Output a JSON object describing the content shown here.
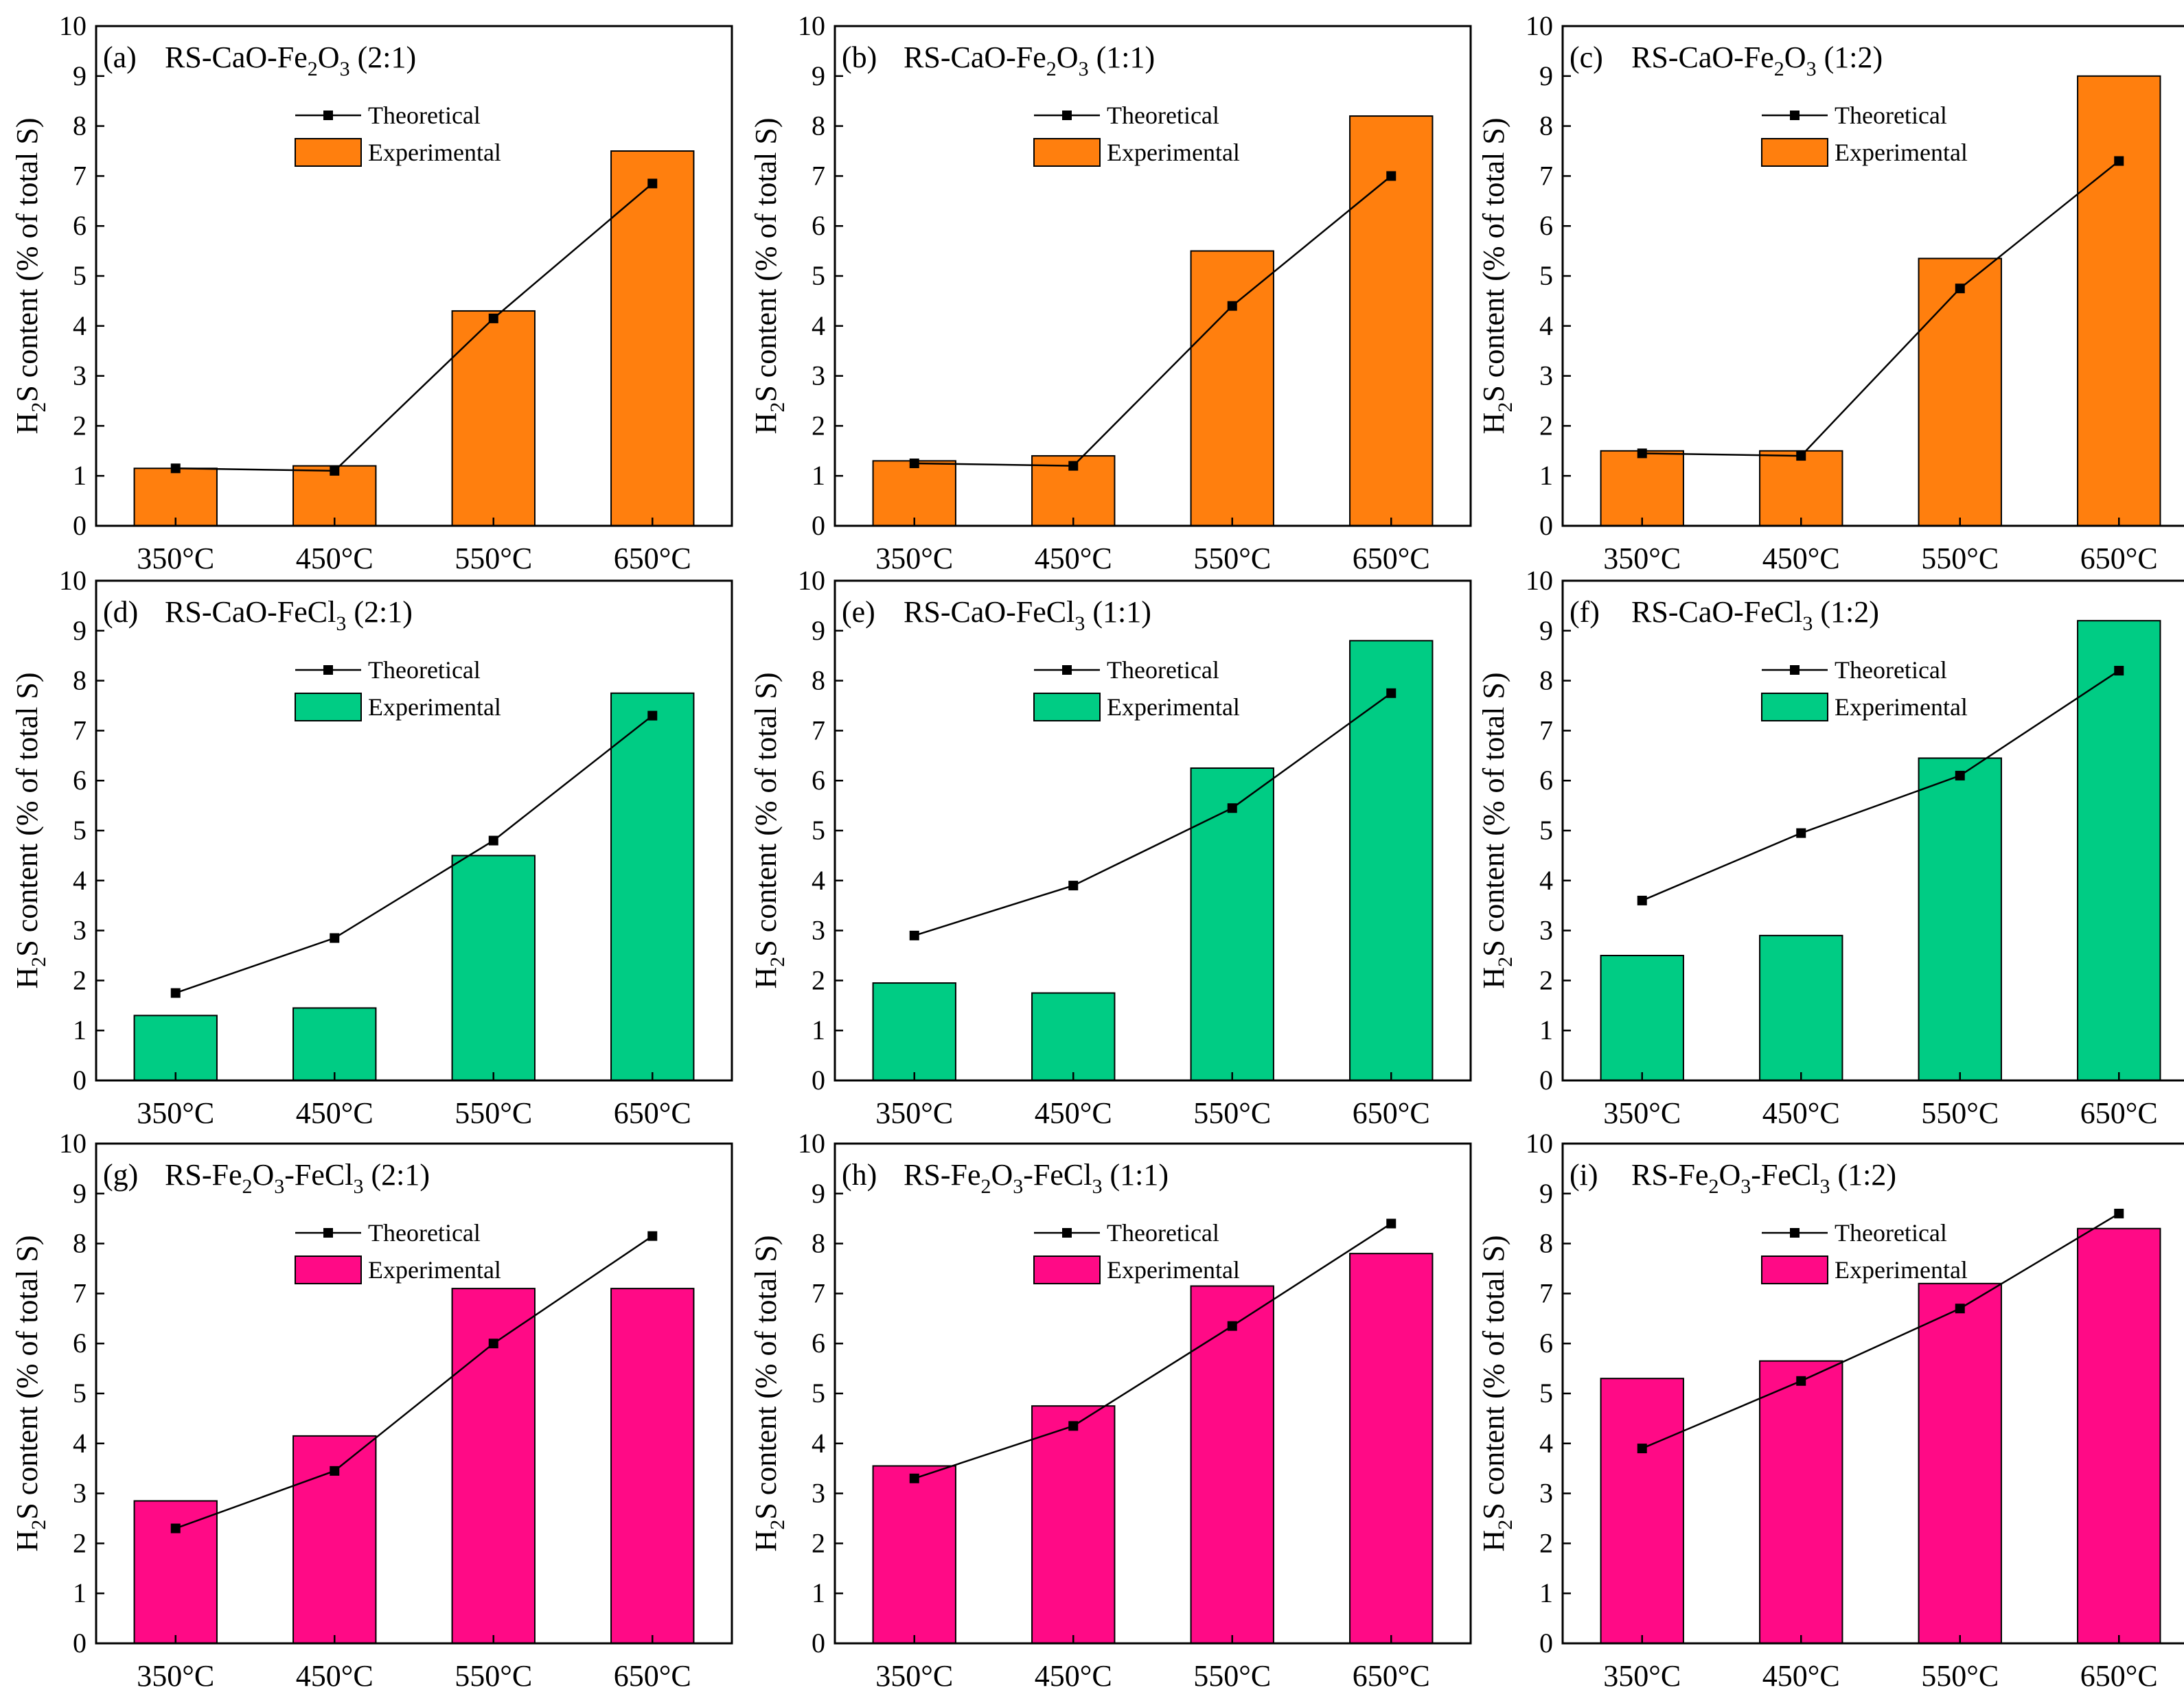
{
  "figure": {
    "categories": [
      "350°C",
      "450°C",
      "550°C",
      "650°C"
    ],
    "ylabel": {
      "main": "H",
      "sub": "2",
      "rest": "S content (% of total S)"
    },
    "legend": {
      "theoretical": "Theoretical",
      "experimental": "Experimental"
    },
    "yticks": [
      "0",
      "1",
      "2",
      "3",
      "4",
      "5",
      "6",
      "7",
      "8",
      "9",
      "10"
    ]
  },
  "colors": {
    "orange": "#ff7f0e",
    "green": "#00cc84",
    "magenta": "#ff0a86",
    "line": "#000000"
  },
  "chart_data": [
    {
      "type": "bar",
      "panel": "(a)",
      "title_parts": [
        "RS-CaO-Fe",
        "2",
        "O",
        "3",
        " (2:1)"
      ],
      "color_key": "orange",
      "experimental": [
        1.15,
        1.2,
        4.3,
        7.5
      ],
      "theoretical": [
        1.15,
        1.1,
        4.15,
        6.85
      ],
      "ylim": [
        0,
        10
      ]
    },
    {
      "type": "bar",
      "panel": "(b)",
      "title_parts": [
        "RS-CaO-Fe",
        "2",
        "O",
        "3",
        " (1:1)"
      ],
      "color_key": "orange",
      "experimental": [
        1.3,
        1.4,
        5.5,
        8.2
      ],
      "theoretical": [
        1.25,
        1.2,
        4.4,
        7.0
      ],
      "ylim": [
        0,
        10
      ]
    },
    {
      "type": "bar",
      "panel": "(c)",
      "title_parts": [
        "RS-CaO-Fe",
        "2",
        "O",
        "3",
        " (1:2)"
      ],
      "color_key": "orange",
      "experimental": [
        1.5,
        1.5,
        5.35,
        9.0
      ],
      "theoretical": [
        1.45,
        1.4,
        4.75,
        7.3
      ],
      "ylim": [
        0,
        10
      ]
    },
    {
      "type": "bar",
      "panel": "(d)",
      "title_parts": [
        "RS-CaO-FeCl",
        "3",
        " (2:1)"
      ],
      "color_key": "green",
      "experimental": [
        1.3,
        1.45,
        4.5,
        7.75
      ],
      "theoretical": [
        1.75,
        2.85,
        4.8,
        7.3
      ],
      "ylim": [
        0,
        10
      ]
    },
    {
      "type": "bar",
      "panel": "(e)",
      "title_parts": [
        "RS-CaO-FeCl",
        "3",
        " (1:1)"
      ],
      "color_key": "green",
      "experimental": [
        1.95,
        1.75,
        6.25,
        8.8
      ],
      "theoretical": [
        2.9,
        3.9,
        5.45,
        7.75
      ],
      "ylim": [
        0,
        10
      ]
    },
    {
      "type": "bar",
      "panel": "(f)",
      "title_parts": [
        "RS-CaO-FeCl",
        "3",
        " (1:2)"
      ],
      "color_key": "green",
      "experimental": [
        2.5,
        2.9,
        6.45,
        9.2
      ],
      "theoretical": [
        3.6,
        4.95,
        6.1,
        8.2
      ],
      "ylim": [
        0,
        10
      ]
    },
    {
      "type": "bar",
      "panel": "(g)",
      "title_parts": [
        "RS-Fe",
        "2",
        "O",
        "3",
        "-FeCl",
        "3",
        " (2:1)"
      ],
      "color_key": "magenta",
      "experimental": [
        2.85,
        4.15,
        7.1,
        7.1
      ],
      "theoretical": [
        2.3,
        3.45,
        6.0,
        8.15
      ],
      "ylim": [
        0,
        10
      ]
    },
    {
      "type": "bar",
      "panel": "(h)",
      "title_parts": [
        "RS-Fe",
        "2",
        "O",
        "3",
        "-FeCl",
        "3",
        " (1:1)"
      ],
      "color_key": "magenta",
      "experimental": [
        3.55,
        4.75,
        7.15,
        7.8
      ],
      "theoretical": [
        3.3,
        4.35,
        6.35,
        8.4
      ],
      "ylim": [
        0,
        10
      ]
    },
    {
      "type": "bar",
      "panel": "(i)",
      "title_parts": [
        "RS-Fe",
        "2",
        "O",
        "3",
        "-FeCl",
        "3",
        " (1:2)"
      ],
      "color_key": "magenta",
      "experimental": [
        5.3,
        5.65,
        7.2,
        8.3
      ],
      "theoretical": [
        3.9,
        5.25,
        6.7,
        8.6
      ],
      "ylim": [
        0,
        10
      ]
    }
  ]
}
